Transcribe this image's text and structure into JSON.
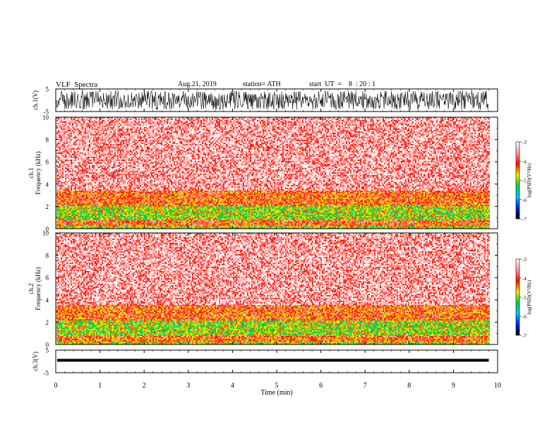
{
  "header": {
    "title": "VLF  Spectra",
    "date": "Aug.21, 2019",
    "station": "station= ATH",
    "start": "start  UT  =    8  : 20 : 1"
  },
  "chart_data": [
    {
      "type": "line",
      "name": "ch1-waveform",
      "ylabel": "ch.1(V)",
      "ylim": [
        -5,
        5
      ],
      "yticks": [
        "5",
        "-5"
      ],
      "xlim": [
        0,
        10
      ],
      "amplitude_range": [
        -4.2,
        4.2
      ],
      "note_series": "dense broadband noise spanning about ±4 V over 0–9.8 min"
    },
    {
      "type": "heatmap",
      "name": "ch1-spectrogram",
      "ylabel_lines": [
        "ch.1",
        "Frequency  (kHz)"
      ],
      "ylim": [
        0,
        10
      ],
      "yticks": [
        "10",
        "8",
        "6",
        "4",
        "2",
        "0"
      ],
      "xlim": [
        0,
        10
      ],
      "x_data_end": 9.8,
      "bands_khz": [
        {
          "from": 3.4,
          "to": 10.0,
          "level": -3.5
        },
        {
          "from": 2.0,
          "to": 3.4,
          "level": -4.2
        },
        {
          "from": 0.8,
          "to": 2.0,
          "level": -4.9
        },
        {
          "from": 0.3,
          "to": 0.8,
          "level": -4.1
        },
        {
          "from": 0.0,
          "to": 0.3,
          "level": -4.8
        }
      ]
    },
    {
      "type": "heatmap",
      "name": "ch2-spectrogram",
      "ylabel_lines": [
        "ch.2",
        "Frequency  (kHz)"
      ],
      "ylim": [
        0,
        10
      ],
      "yticks": [
        "10",
        "8",
        "6",
        "4",
        "2",
        "0"
      ],
      "xlim": [
        0,
        10
      ],
      "x_data_end": 9.8,
      "bands_khz": [
        {
          "from": 3.6,
          "to": 10.0,
          "level": -3.5
        },
        {
          "from": 2.2,
          "to": 3.6,
          "level": -4.2
        },
        {
          "from": 0.8,
          "to": 2.2,
          "level": -4.9
        },
        {
          "from": 0.2,
          "to": 0.8,
          "level": -4.2
        },
        {
          "from": 0.0,
          "to": 0.2,
          "level": -4.8
        }
      ]
    },
    {
      "type": "line",
      "name": "ch3-waveform",
      "ylabel": "ch.3(V)",
      "ylim": [
        -5,
        5
      ],
      "yticks": [
        "5",
        "-5"
      ],
      "xlim": [
        0,
        10
      ],
      "level_v": 0.5,
      "xlabel": "Time  (min)",
      "xticks": [
        "0",
        "1",
        "2",
        "3",
        "4",
        "5",
        "6",
        "7",
        "8",
        "9",
        "10"
      ]
    }
  ],
  "colorbar": {
    "label": "log(PSD)(V²/Hz)",
    "ticks": [
      "-3",
      "-4",
      "-5",
      "-6",
      "-7"
    ],
    "range": [
      -7,
      -3
    ],
    "colors": [
      "#000000",
      "#0020e0",
      "#00c8ff",
      "#00d040",
      "#f0f000",
      "#ff1000",
      "#ff9c9c",
      "#ffffff"
    ]
  }
}
